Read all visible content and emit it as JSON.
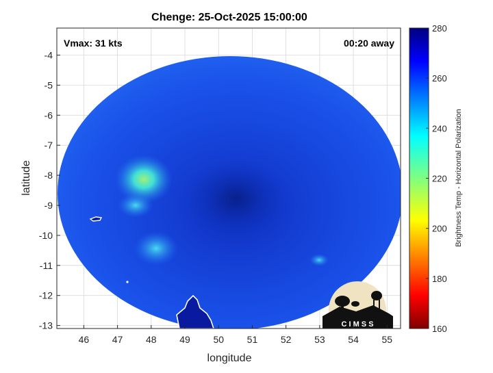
{
  "title": "Chenge: 25-Oct-2025 15:00:00",
  "annotations": {
    "vmax": "Vmax: 31 kts",
    "away": "00:20 away"
  },
  "axes": {
    "xlabel": "longitude",
    "ylabel": "latitude",
    "xlim": [
      45.2,
      55.4
    ],
    "ylim": [
      -13.1,
      -3.1
    ],
    "xticks": [
      "46",
      "47",
      "48",
      "49",
      "50",
      "51",
      "52",
      "53",
      "54",
      "55"
    ],
    "yticks": [
      "-4",
      "-5",
      "-6",
      "-7",
      "-8",
      "-9",
      "-10",
      "-11",
      "-12",
      "-13"
    ],
    "grid": true
  },
  "colorbar": {
    "label": "Brightness Temp - Horizontal Polarization",
    "ticks": [
      "280",
      "260",
      "240",
      "220",
      "200",
      "180",
      "160"
    ],
    "range": [
      160,
      280
    ],
    "colormap": "jet"
  },
  "logo": {
    "text": "C I M S S"
  },
  "colors": {
    "background_scene": "#1a50e8",
    "cold_cloud": "#33d4f0",
    "land": "#0a1aa0",
    "coast": "#ffffff"
  }
}
